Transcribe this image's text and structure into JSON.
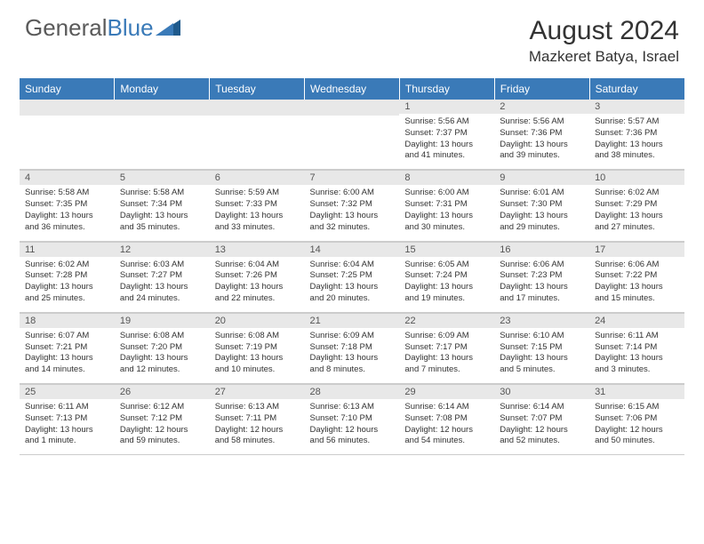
{
  "logo": {
    "gray": "General",
    "blue": "Blue"
  },
  "title": "August 2024",
  "location": "Mazkeret Batya, Israel",
  "header_color": "#3a7ab8",
  "daynum_bg": "#e8e8e8",
  "text_color": "#333333",
  "weekdays": [
    "Sunday",
    "Monday",
    "Tuesday",
    "Wednesday",
    "Thursday",
    "Friday",
    "Saturday"
  ],
  "weeks": [
    [
      null,
      null,
      null,
      null,
      {
        "n": "1",
        "sunrise": "5:56 AM",
        "sunset": "7:37 PM",
        "daylight": "13 hours and 41 minutes."
      },
      {
        "n": "2",
        "sunrise": "5:56 AM",
        "sunset": "7:36 PM",
        "daylight": "13 hours and 39 minutes."
      },
      {
        "n": "3",
        "sunrise": "5:57 AM",
        "sunset": "7:36 PM",
        "daylight": "13 hours and 38 minutes."
      }
    ],
    [
      {
        "n": "4",
        "sunrise": "5:58 AM",
        "sunset": "7:35 PM",
        "daylight": "13 hours and 36 minutes."
      },
      {
        "n": "5",
        "sunrise": "5:58 AM",
        "sunset": "7:34 PM",
        "daylight": "13 hours and 35 minutes."
      },
      {
        "n": "6",
        "sunrise": "5:59 AM",
        "sunset": "7:33 PM",
        "daylight": "13 hours and 33 minutes."
      },
      {
        "n": "7",
        "sunrise": "6:00 AM",
        "sunset": "7:32 PM",
        "daylight": "13 hours and 32 minutes."
      },
      {
        "n": "8",
        "sunrise": "6:00 AM",
        "sunset": "7:31 PM",
        "daylight": "13 hours and 30 minutes."
      },
      {
        "n": "9",
        "sunrise": "6:01 AM",
        "sunset": "7:30 PM",
        "daylight": "13 hours and 29 minutes."
      },
      {
        "n": "10",
        "sunrise": "6:02 AM",
        "sunset": "7:29 PM",
        "daylight": "13 hours and 27 minutes."
      }
    ],
    [
      {
        "n": "11",
        "sunrise": "6:02 AM",
        "sunset": "7:28 PM",
        "daylight": "13 hours and 25 minutes."
      },
      {
        "n": "12",
        "sunrise": "6:03 AM",
        "sunset": "7:27 PM",
        "daylight": "13 hours and 24 minutes."
      },
      {
        "n": "13",
        "sunrise": "6:04 AM",
        "sunset": "7:26 PM",
        "daylight": "13 hours and 22 minutes."
      },
      {
        "n": "14",
        "sunrise": "6:04 AM",
        "sunset": "7:25 PM",
        "daylight": "13 hours and 20 minutes."
      },
      {
        "n": "15",
        "sunrise": "6:05 AM",
        "sunset": "7:24 PM",
        "daylight": "13 hours and 19 minutes."
      },
      {
        "n": "16",
        "sunrise": "6:06 AM",
        "sunset": "7:23 PM",
        "daylight": "13 hours and 17 minutes."
      },
      {
        "n": "17",
        "sunrise": "6:06 AM",
        "sunset": "7:22 PM",
        "daylight": "13 hours and 15 minutes."
      }
    ],
    [
      {
        "n": "18",
        "sunrise": "6:07 AM",
        "sunset": "7:21 PM",
        "daylight": "13 hours and 14 minutes."
      },
      {
        "n": "19",
        "sunrise": "6:08 AM",
        "sunset": "7:20 PM",
        "daylight": "13 hours and 12 minutes."
      },
      {
        "n": "20",
        "sunrise": "6:08 AM",
        "sunset": "7:19 PM",
        "daylight": "13 hours and 10 minutes."
      },
      {
        "n": "21",
        "sunrise": "6:09 AM",
        "sunset": "7:18 PM",
        "daylight": "13 hours and 8 minutes."
      },
      {
        "n": "22",
        "sunrise": "6:09 AM",
        "sunset": "7:17 PM",
        "daylight": "13 hours and 7 minutes."
      },
      {
        "n": "23",
        "sunrise": "6:10 AM",
        "sunset": "7:15 PM",
        "daylight": "13 hours and 5 minutes."
      },
      {
        "n": "24",
        "sunrise": "6:11 AM",
        "sunset": "7:14 PM",
        "daylight": "13 hours and 3 minutes."
      }
    ],
    [
      {
        "n": "25",
        "sunrise": "6:11 AM",
        "sunset": "7:13 PM",
        "daylight": "13 hours and 1 minute."
      },
      {
        "n": "26",
        "sunrise": "6:12 AM",
        "sunset": "7:12 PM",
        "daylight": "12 hours and 59 minutes."
      },
      {
        "n": "27",
        "sunrise": "6:13 AM",
        "sunset": "7:11 PM",
        "daylight": "12 hours and 58 minutes."
      },
      {
        "n": "28",
        "sunrise": "6:13 AM",
        "sunset": "7:10 PM",
        "daylight": "12 hours and 56 minutes."
      },
      {
        "n": "29",
        "sunrise": "6:14 AM",
        "sunset": "7:08 PM",
        "daylight": "12 hours and 54 minutes."
      },
      {
        "n": "30",
        "sunrise": "6:14 AM",
        "sunset": "7:07 PM",
        "daylight": "12 hours and 52 minutes."
      },
      {
        "n": "31",
        "sunrise": "6:15 AM",
        "sunset": "7:06 PM",
        "daylight": "12 hours and 50 minutes."
      }
    ]
  ],
  "labels": {
    "sunrise": "Sunrise: ",
    "sunset": "Sunset: ",
    "daylight": "Daylight: "
  }
}
